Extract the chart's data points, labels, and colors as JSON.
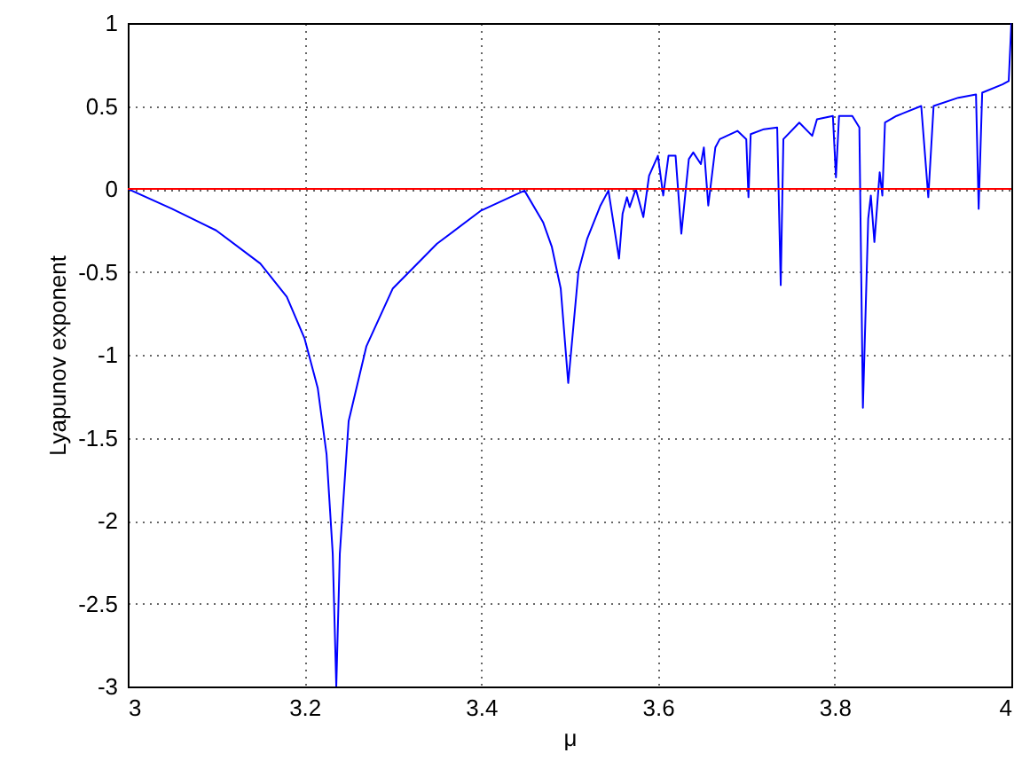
{
  "chart_data": {
    "type": "line",
    "xlabel": "μ",
    "ylabel": "Lyapunov exponent",
    "xlim": [
      3,
      4
    ],
    "xticks": [
      3,
      3.2,
      3.4,
      3.6,
      3.8,
      4
    ],
    "ylim": [
      -3,
      1
    ],
    "yticks": [
      -3,
      -2.5,
      -2,
      -1.5,
      -1,
      -0.5,
      0,
      0.5,
      1
    ],
    "grid": true,
    "marker": "none",
    "line_style": "solid",
    "ref_lines": [
      {
        "axis": "y",
        "value": 0,
        "color": "#ff0000"
      }
    ],
    "series": [
      {
        "color": "#0000ff",
        "x": [
          3.0,
          3.05,
          3.1,
          3.15,
          3.18,
          3.2,
          3.215,
          3.225,
          3.232,
          3.236,
          3.24,
          3.25,
          3.27,
          3.3,
          3.35,
          3.4,
          3.449,
          3.47,
          3.48,
          3.49,
          3.4985,
          3.51,
          3.52,
          3.535,
          3.544,
          3.556,
          3.56,
          3.565,
          3.568,
          3.575,
          3.5835,
          3.59,
          3.6,
          3.606,
          3.612,
          3.62,
          3.6265,
          3.635,
          3.64,
          3.6486,
          3.652,
          3.657,
          3.665,
          3.67,
          3.69,
          3.7,
          3.7025,
          3.705,
          3.72,
          3.735,
          3.739,
          3.742,
          3.76,
          3.7746,
          3.78,
          3.798,
          3.8015,
          3.805,
          3.82,
          3.828,
          3.832,
          3.838,
          3.841,
          3.845,
          3.851,
          3.854,
          3.857,
          3.87,
          3.898,
          3.906,
          3.912,
          3.94,
          3.96,
          3.963,
          3.967,
          3.99,
          3.997,
          4.0
        ],
        "values": [
          0,
          -0.12,
          -0.25,
          -0.45,
          -0.65,
          -0.9,
          -1.2,
          -1.6,
          -2.2,
          -3,
          -2.2,
          -1.4,
          -0.95,
          -0.6,
          -0.33,
          -0.13,
          -0.01,
          -0.2,
          -0.35,
          -0.6,
          -1.17,
          -0.5,
          -0.3,
          -0.1,
          -0.01,
          -0.42,
          -0.15,
          -0.05,
          -0.11,
          0.0,
          -0.17,
          0.08,
          0.2,
          -0.04,
          0.2,
          0.2,
          -0.27,
          0.18,
          0.22,
          0.15,
          0.25,
          -0.1,
          0.25,
          0.3,
          0.35,
          0.3,
          -0.05,
          0.33,
          0.36,
          0.37,
          -0.58,
          0.3,
          0.4,
          0.32,
          0.42,
          0.44,
          0.07,
          0.44,
          0.44,
          0.37,
          -1.32,
          -0.18,
          -0.04,
          -0.32,
          0.1,
          -0.04,
          0.4,
          0.44,
          0.5,
          -0.05,
          0.5,
          0.55,
          0.57,
          -0.12,
          0.58,
          0.63,
          0.65,
          1.0
        ]
      }
    ]
  }
}
